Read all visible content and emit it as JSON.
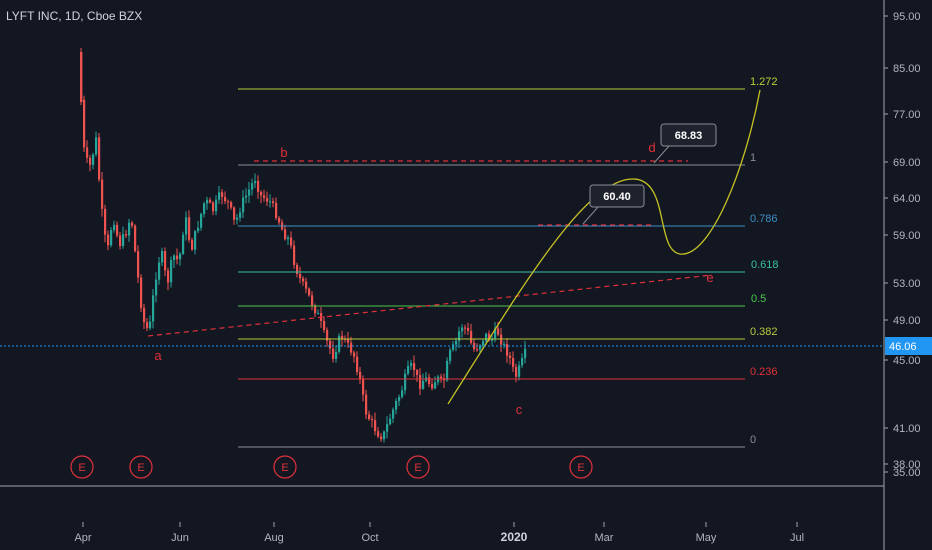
{
  "header": {
    "title": "LYFT INC, 1D, Cboe BZX"
  },
  "chart_data": {
    "type": "candlestick",
    "symbol": "LYFT INC",
    "interval": "1D",
    "exchange": "Cboe BZX",
    "y_ticks": [
      "95.00",
      "85.00",
      "77.00",
      "69.00",
      "64.00",
      "59.00",
      "53.00",
      "49.00",
      "45.00",
      "41.00",
      "38.00",
      "35.00"
    ],
    "x_ticks": [
      "Apr",
      "Jun",
      "Aug",
      "Oct",
      "2020",
      "Mar",
      "May",
      "Jul"
    ],
    "last_price": "46.06",
    "fib_levels": [
      {
        "label": "1.272",
        "color": "#b5d334"
      },
      {
        "label": "1",
        "color": "#8a8d94"
      },
      {
        "label": "0.786",
        "color": "#3d8fc4"
      },
      {
        "label": "0.618",
        "color": "#36c0a5"
      },
      {
        "label": "0.5",
        "color": "#4cc94c"
      },
      {
        "label": "0.382",
        "color": "#b9c93b"
      },
      {
        "label": "0.236",
        "color": "#e0313a"
      },
      {
        "label": "0",
        "color": "#8a8d94"
      }
    ],
    "wave_labels": [
      "a",
      "b",
      "c",
      "d",
      "e"
    ],
    "callouts": [
      "68.83",
      "60.40"
    ],
    "earnings_markers": [
      "E",
      "E",
      "E",
      "E",
      "E"
    ],
    "colors": {
      "up": "#26a69a",
      "down": "#ef5350",
      "background": "#131722",
      "last_price": "#2196f3"
    }
  }
}
